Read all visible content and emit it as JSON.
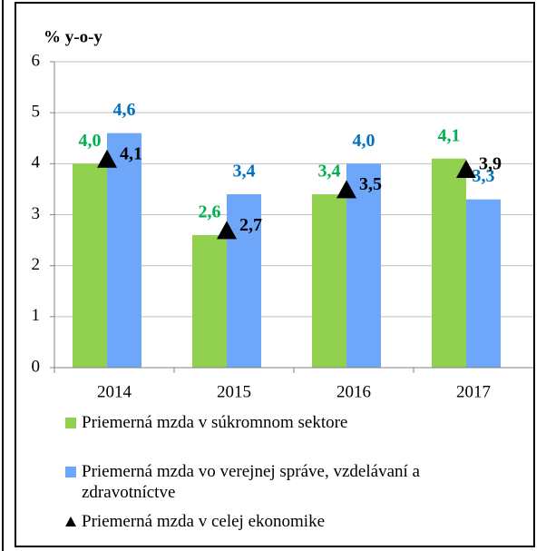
{
  "chart_data": {
    "type": "bar",
    "title": "% y-o-y",
    "categories": [
      "2014",
      "2015",
      "2016",
      "2017"
    ],
    "series": [
      {
        "name": "Priemerná mzda v súkromnom sektore",
        "color": "#92d050",
        "label_color": "#00b050",
        "values": [
          4.0,
          2.6,
          3.4,
          4.1
        ],
        "value_labels": [
          "4,0",
          "2,6",
          "3,4",
          "4,1"
        ]
      },
      {
        "name": "Priemerná mzda vo verejnej správe, vzdelávaní a zdravotníctve",
        "color": "#6ea6fa",
        "label_color": "#0070c0",
        "values": [
          4.6,
          3.4,
          4.0,
          3.3
        ],
        "value_labels": [
          "4,6",
          "3,4",
          "4,0",
          "3,3"
        ]
      },
      {
        "name": "Priemerná mzda v celej ekonomike",
        "color": "#000000",
        "label_color": "#000000",
        "marker": "triangle",
        "values": [
          4.1,
          2.7,
          3.5,
          3.9
        ],
        "value_labels": [
          "4,1",
          "2,7",
          "3,5",
          "3,9"
        ]
      }
    ],
    "ylim": [
      0,
      6
    ],
    "yticks": [
      0,
      1,
      2,
      3,
      4,
      5,
      6
    ],
    "grid": true
  }
}
